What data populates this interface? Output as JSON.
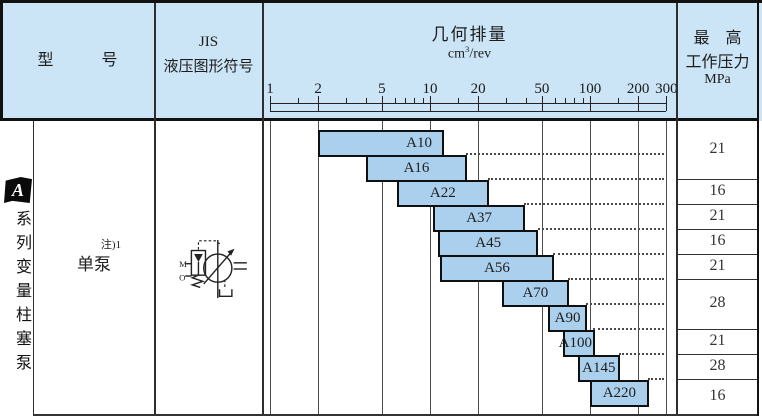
{
  "header": {
    "model_col": "型　　　号",
    "symbol_col_line1": "JIS",
    "symbol_col_line2": "液压图形符号",
    "chart_title": "几何排量",
    "unit_base": "cm",
    "unit_sup": "3",
    "unit_rest": "/rev",
    "pressure_line1": "最　高",
    "pressure_line2": "工作压力",
    "pressure_line3": "MPa"
  },
  "side": {
    "logo": "A",
    "series": "系列变量柱塞泵"
  },
  "model_cell": {
    "note": "注)1",
    "label": "单泵"
  },
  "chart_data": {
    "type": "bar",
    "orientation": "horizontal-range",
    "x_scale": "log",
    "title": "几何排量",
    "unit": "cm³/rev",
    "x_ticks": [
      1,
      2,
      5,
      10,
      20,
      50,
      100,
      200,
      300
    ],
    "x_minor_ticks": [
      1.5,
      3,
      4,
      6,
      7,
      8,
      9,
      15,
      30,
      40,
      60,
      70,
      80,
      90,
      150
    ],
    "bars": [
      {
        "model": "A10",
        "min": 2,
        "max": 10,
        "pressure": 21,
        "align": "end"
      },
      {
        "model": "A16",
        "min": 4,
        "max": 16,
        "pressure": 21,
        "align": "center"
      },
      {
        "model": "A22",
        "min": 6.2,
        "max": 22,
        "pressure": 16,
        "align": "center"
      },
      {
        "model": "A37",
        "min": 10.5,
        "max": 37,
        "pressure": 21,
        "align": "center"
      },
      {
        "model": "A45",
        "min": 11.2,
        "max": 45,
        "pressure": 16,
        "align": "center"
      },
      {
        "model": "A56",
        "min": 11.6,
        "max": 56,
        "pressure": 21,
        "align": "center"
      },
      {
        "model": "A70",
        "min": 28,
        "max": 70,
        "pressure": 28,
        "align": "center"
      },
      {
        "model": "A90",
        "min": 55,
        "max": 90,
        "pressure": 28,
        "align": "center"
      },
      {
        "model": "A100",
        "min": 68,
        "max": 100,
        "pressure": 21,
        "align": "end-tight"
      },
      {
        "model": "A145",
        "min": 84,
        "max": 145,
        "pressure": 28,
        "align": "center"
      },
      {
        "model": "A220",
        "min": 100,
        "max": 220,
        "pressure": 16,
        "align": "center"
      }
    ],
    "pressure_groups": [
      {
        "value": "21",
        "row_start": 0,
        "row_count": 2
      },
      {
        "value": "16",
        "row_start": 2,
        "row_count": 1
      },
      {
        "value": "21",
        "row_start": 3,
        "row_count": 1
      },
      {
        "value": "16",
        "row_start": 4,
        "row_count": 1
      },
      {
        "value": "21",
        "row_start": 5,
        "row_count": 1
      },
      {
        "value": "28",
        "row_start": 6,
        "row_count": 2
      },
      {
        "value": "21",
        "row_start": 8,
        "row_count": 1
      },
      {
        "value": "28",
        "row_start": 9,
        "row_count": 1
      },
      {
        "value": "16",
        "row_start": 10,
        "row_count": 1
      }
    ]
  },
  "colors": {
    "header_bg": "#cbe4f6",
    "bar_fill": "#abd0ed",
    "border": "#111111",
    "grid": "#4d4d4d",
    "text": "#222222"
  }
}
